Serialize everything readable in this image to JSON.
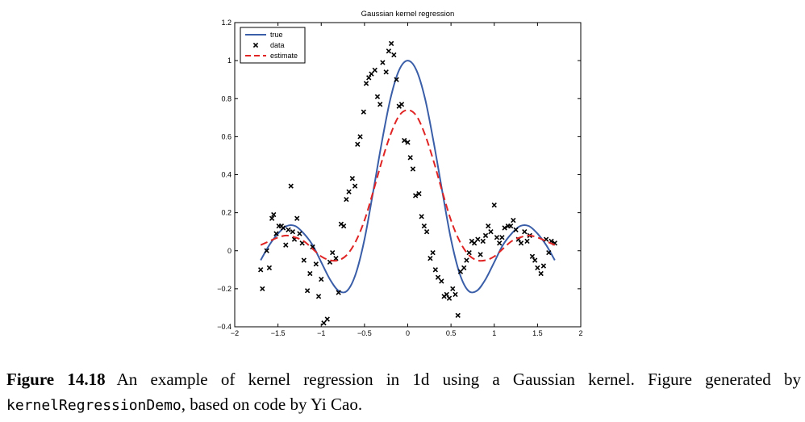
{
  "chart_data": {
    "type": "line",
    "title": "Gaussian kernel regression",
    "xlabel": "",
    "ylabel": "",
    "xlim": [
      -2,
      2
    ],
    "ylim": [
      -0.4,
      1.2
    ],
    "xticks": [
      -2,
      -1.5,
      -1,
      -0.5,
      0,
      0.5,
      1,
      1.5,
      2
    ],
    "xtick_labels": [
      "−2",
      "−1.5",
      "−1",
      "−0.5",
      "0",
      "0.5",
      "1",
      "1.5",
      "2"
    ],
    "yticks": [
      -0.4,
      -0.2,
      0,
      0.2,
      0.4,
      0.6,
      0.8,
      1,
      1.2
    ],
    "ytick_labels": [
      "−0.4",
      "−0.2",
      "0",
      "0.2",
      "0.4",
      "0.6",
      "0.8",
      "1",
      "1.2"
    ],
    "grid": false,
    "legend_position": "top-left",
    "series": [
      {
        "name": "true",
        "style": "solid",
        "color": "#3a5ea8",
        "x": [
          -1.7,
          -1.6,
          -1.5,
          -1.4,
          -1.3,
          -1.2,
          -1.1,
          -1.0,
          -0.9,
          -0.8,
          -0.7,
          -0.6,
          -0.5,
          -0.4,
          -0.3,
          -0.2,
          -0.1,
          0.0,
          0.1,
          0.2,
          0.3,
          0.4,
          0.5,
          0.6,
          0.7,
          0.8,
          0.9,
          1.0,
          1.1,
          1.2,
          1.3,
          1.4,
          1.5,
          1.6,
          1.7
        ],
        "y": [
          -0.05,
          0.03,
          0.09,
          0.13,
          0.13,
          0.09,
          0.03,
          -0.06,
          -0.15,
          -0.21,
          -0.21,
          -0.12,
          0.06,
          0.31,
          0.57,
          0.8,
          0.95,
          1.0,
          0.95,
          0.8,
          0.57,
          0.31,
          0.06,
          -0.12,
          -0.21,
          -0.21,
          -0.15,
          -0.06,
          0.03,
          0.09,
          0.13,
          0.13,
          0.09,
          0.03,
          -0.05
        ]
      },
      {
        "name": "data",
        "style": "markers-x",
        "color": "#000000",
        "x": [
          -1.7,
          -1.68,
          -1.63,
          -1.6,
          -1.57,
          -1.55,
          -1.52,
          -1.49,
          -1.46,
          -1.44,
          -1.41,
          -1.38,
          -1.35,
          -1.33,
          -1.31,
          -1.28,
          -1.25,
          -1.22,
          -1.2,
          -1.16,
          -1.13,
          -1.1,
          -1.06,
          -1.03,
          -1.0,
          -0.97,
          -0.93,
          -0.9,
          -0.87,
          -0.83,
          -0.8,
          -0.77,
          -0.74,
          -0.71,
          -0.68,
          -0.64,
          -0.61,
          -0.58,
          -0.55,
          -0.51,
          -0.48,
          -0.45,
          -0.42,
          -0.38,
          -0.35,
          -0.32,
          -0.29,
          -0.25,
          -0.22,
          -0.19,
          -0.16,
          -0.13,
          -0.1,
          -0.07,
          -0.04,
          0.0,
          0.03,
          0.06,
          0.09,
          0.13,
          0.16,
          0.19,
          0.22,
          0.26,
          0.29,
          0.32,
          0.35,
          0.39,
          0.42,
          0.45,
          0.48,
          0.52,
          0.55,
          0.58,
          0.61,
          0.65,
          0.68,
          0.71,
          0.74,
          0.77,
          0.81,
          0.84,
          0.87,
          0.9,
          0.93,
          0.96,
          1.0,
          1.03,
          1.06,
          1.09,
          1.12,
          1.16,
          1.19,
          1.22,
          1.25,
          1.28,
          1.31,
          1.35,
          1.38,
          1.41,
          1.44,
          1.47,
          1.5,
          1.54,
          1.57,
          1.6,
          1.63,
          1.66,
          1.7
        ],
        "y": [
          -0.1,
          -0.2,
          0.0,
          -0.09,
          0.17,
          0.19,
          0.09,
          0.13,
          0.13,
          0.12,
          0.03,
          0.11,
          0.34,
          0.1,
          0.06,
          0.17,
          0.09,
          0.04,
          -0.05,
          -0.21,
          -0.12,
          0.02,
          -0.07,
          -0.24,
          -0.15,
          -0.38,
          -0.36,
          -0.06,
          -0.01,
          -0.04,
          -0.22,
          0.14,
          0.13,
          0.27,
          0.31,
          0.38,
          0.34,
          0.56,
          0.6,
          0.73,
          0.88,
          0.91,
          0.93,
          0.95,
          0.81,
          0.77,
          0.99,
          0.94,
          1.05,
          1.09,
          1.03,
          0.9,
          0.76,
          0.77,
          0.58,
          0.57,
          0.49,
          0.43,
          0.29,
          0.3,
          0.18,
          0.13,
          0.1,
          -0.04,
          -0.01,
          -0.1,
          -0.14,
          -0.16,
          -0.24,
          -0.23,
          -0.25,
          -0.2,
          -0.23,
          -0.34,
          -0.11,
          -0.09,
          -0.05,
          -0.01,
          0.05,
          0.04,
          0.06,
          -0.02,
          0.05,
          0.08,
          0.13,
          0.1,
          0.24,
          0.07,
          0.04,
          0.07,
          0.12,
          0.13,
          0.13,
          0.16,
          0.11,
          0.06,
          0.04,
          0.1,
          0.05,
          0.08,
          -0.03,
          -0.05,
          -0.09,
          -0.12,
          -0.08,
          0.06,
          -0.01,
          0.05,
          0.04
        ]
      },
      {
        "name": "estimate",
        "style": "dashed",
        "color": "#e02424",
        "x": [
          -1.7,
          -1.6,
          -1.5,
          -1.4,
          -1.3,
          -1.2,
          -1.1,
          -1.0,
          -0.9,
          -0.8,
          -0.7,
          -0.6,
          -0.5,
          -0.4,
          -0.3,
          -0.2,
          -0.1,
          0.0,
          0.1,
          0.2,
          0.3,
          0.4,
          0.5,
          0.6,
          0.7,
          0.8,
          0.9,
          1.0,
          1.1,
          1.2,
          1.3,
          1.4,
          1.5,
          1.6,
          1.7
        ],
        "y": [
          0.03,
          0.05,
          0.07,
          0.08,
          0.07,
          0.05,
          0.01,
          -0.03,
          -0.05,
          -0.05,
          -0.02,
          0.05,
          0.16,
          0.31,
          0.47,
          0.61,
          0.71,
          0.74,
          0.71,
          0.61,
          0.47,
          0.31,
          0.16,
          0.05,
          -0.02,
          -0.05,
          -0.05,
          -0.03,
          0.01,
          0.05,
          0.07,
          0.08,
          0.07,
          0.05,
          0.03
        ]
      }
    ]
  },
  "caption": {
    "label": "Figure 14.18",
    "text_before_code": "An example of kernel regression in 1d using a Gaussian kernel.  Figure generated by",
    "code": "kernelRegressionDemo",
    "text_after_code": ", based on code by Yi Cao."
  }
}
